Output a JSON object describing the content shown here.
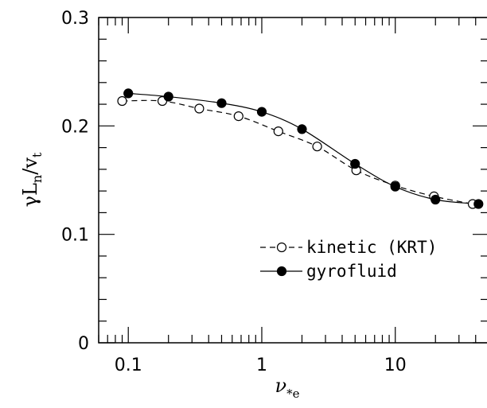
{
  "chart_data": {
    "type": "line",
    "x_scale": "log",
    "xlim": [
      0.06,
      50
    ],
    "ylim": [
      0,
      0.3
    ],
    "x_ticks": [
      {
        "value": 0.1,
        "label": "0.1"
      },
      {
        "value": 1,
        "label": "1"
      },
      {
        "value": 10,
        "label": "10"
      }
    ],
    "y_ticks": [
      {
        "value": 0,
        "label": "0"
      },
      {
        "value": 0.1,
        "label": "0.1"
      },
      {
        "value": 0.2,
        "label": "0.2"
      },
      {
        "value": 0.3,
        "label": "0.3"
      }
    ],
    "ylabel": {
      "base": "γL",
      "sub1": "n",
      "mid": "/v",
      "sub2": "t"
    },
    "xlabel": {
      "base": "ν",
      "sub": "*e"
    },
    "legend_position": "center-right",
    "series": [
      {
        "name": "kinetic (KRT)",
        "marker": "open-circle",
        "line": "dashed",
        "color": "#000000",
        "x": [
          0.09,
          0.18,
          0.34,
          0.67,
          1.33,
          2.6,
          5.1,
          10.0,
          19.5,
          38
        ],
        "y": [
          0.223,
          0.223,
          0.216,
          0.209,
          0.195,
          0.181,
          0.159,
          0.145,
          0.135,
          0.128
        ]
      },
      {
        "name": "gyrofluid",
        "marker": "filled-circle",
        "line": "solid",
        "color": "#000000",
        "x": [
          0.1,
          0.2,
          0.5,
          1.0,
          2.0,
          5.0,
          10.0,
          20.0,
          42
        ],
        "y": [
          0.23,
          0.227,
          0.221,
          0.213,
          0.197,
          0.165,
          0.144,
          0.132,
          0.128
        ]
      }
    ]
  }
}
